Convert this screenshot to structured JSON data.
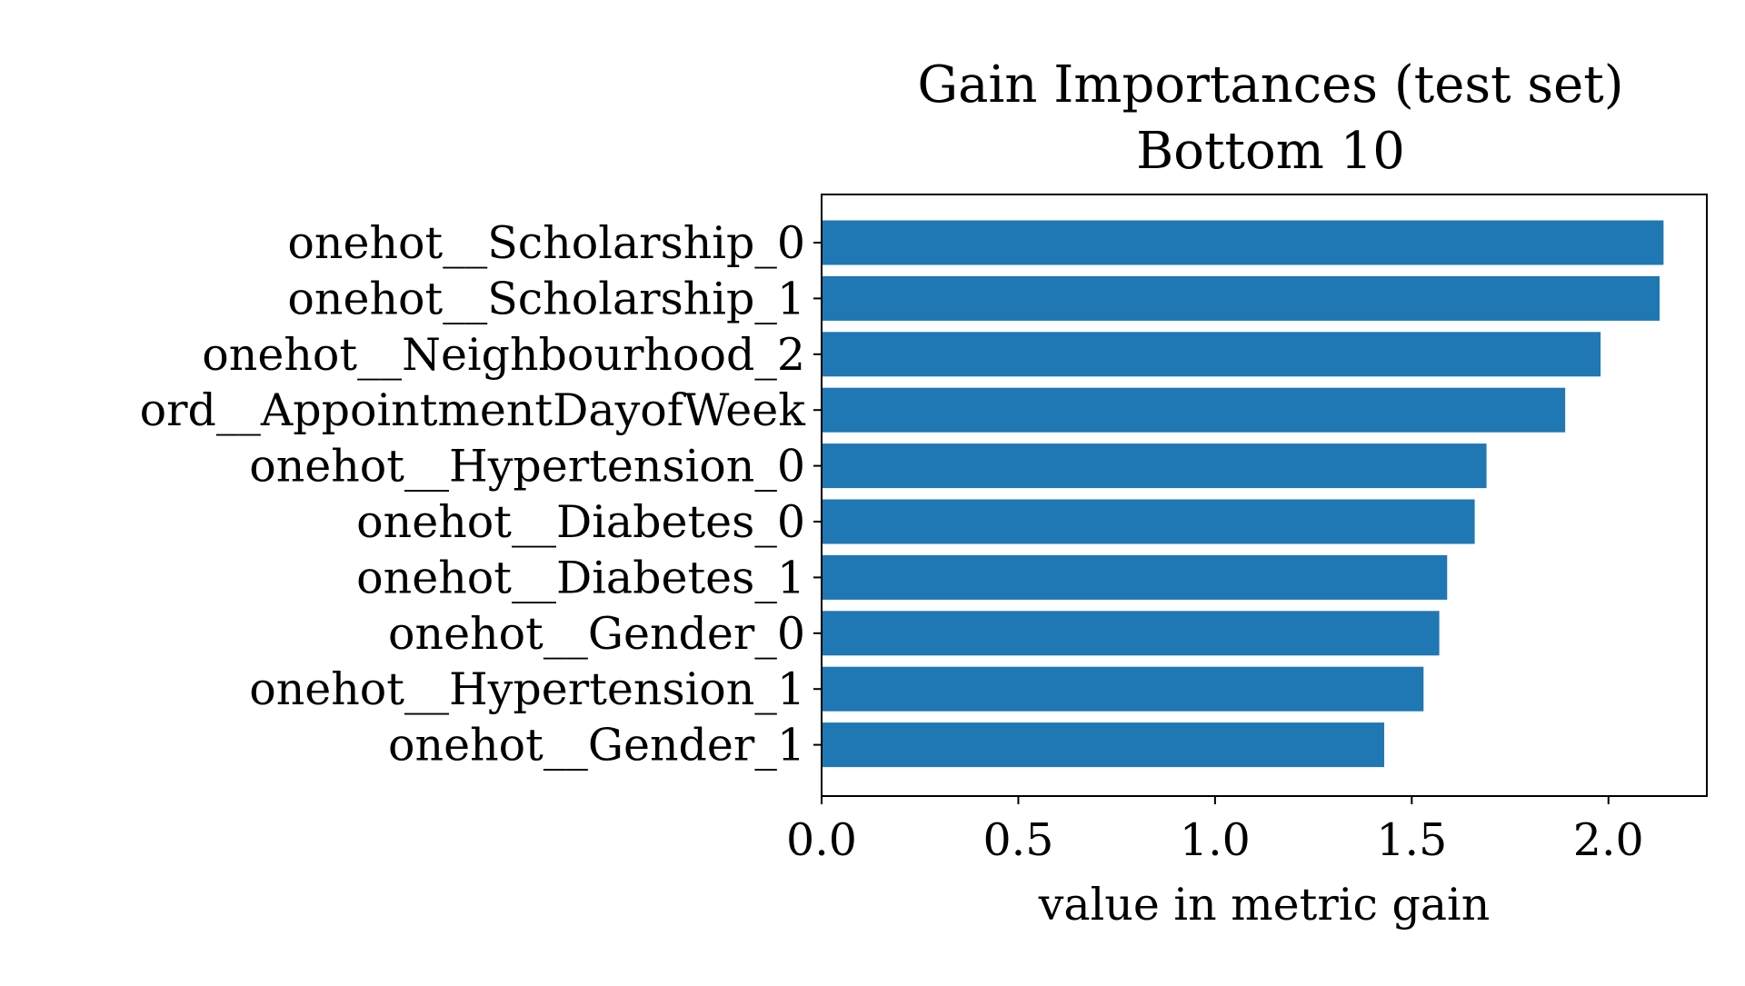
{
  "chart_data": {
    "type": "bar",
    "orientation": "horizontal",
    "title": "Gain Importances (test set)",
    "subtitle": "Bottom 10",
    "xlabel": "value in metric gain",
    "ylabel": "",
    "xlim": [
      0,
      2.25
    ],
    "xticks": [
      0.0,
      0.5,
      1.0,
      1.5,
      2.0
    ],
    "xtick_labels": [
      "0.0",
      "0.5",
      "1.0",
      "1.5",
      "2.0"
    ],
    "grid": false,
    "bar_color": "#1f77b4",
    "categories": [
      "onehot__Scholarship_0",
      "onehot__Scholarship_1",
      "onehot__Neighbourhood_2",
      "ord__AppointmentDayofWeek",
      "onehot__Hypertension_0",
      "onehot__Diabetes_0",
      "onehot__Diabetes_1",
      "onehot__Gender_0",
      "onehot__Hypertension_1",
      "onehot__Gender_1"
    ],
    "values": [
      2.14,
      2.13,
      1.98,
      1.89,
      1.69,
      1.66,
      1.59,
      1.57,
      1.53,
      1.43
    ]
  }
}
